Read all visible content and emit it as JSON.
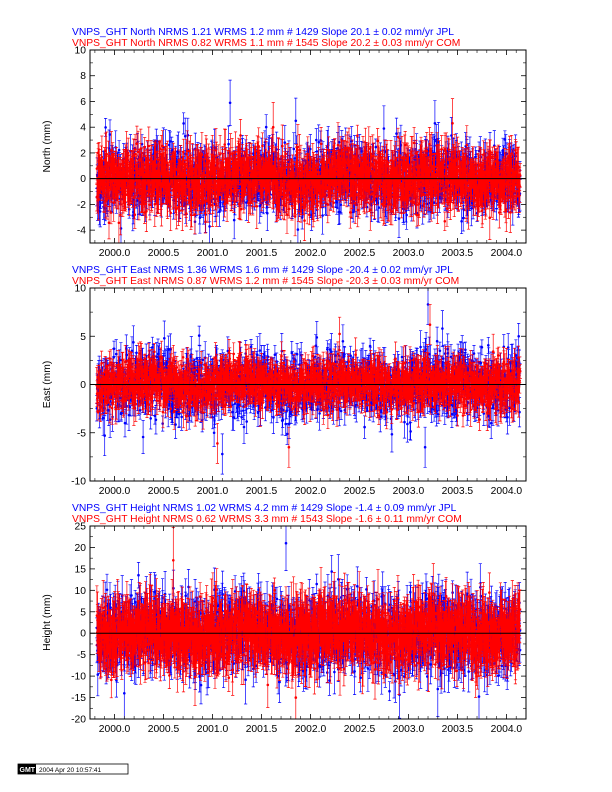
{
  "colors": {
    "jpl": "#0000ff",
    "com": "#ff0000",
    "axis": "#000000"
  },
  "chart_data": [
    {
      "type": "scatter",
      "title_lines": [
        {
          "text": "VNPS_GHT North NRMS 1.21 WRMS  1.2 mm # 1429 Slope   20.1 ±  0.02 mm/yr JPL",
          "color": "#0000ff"
        },
        {
          "text": "VNPS_GHT North NRMS 0.82 WRMS  1.1 mm # 1545 Slope   20.2 ±  0.03 mm/yr COM",
          "color": "#ff0000"
        }
      ],
      "ylabel": "North (mm)",
      "xlim": [
        1999.75,
        2004.2
      ],
      "ylim": [
        -5,
        10
      ],
      "yticks": [
        -4,
        -2,
        0,
        2,
        4,
        6,
        8,
        10
      ],
      "xticks": [
        2000.0,
        2000.5,
        2001.0,
        2001.5,
        2002.0,
        2002.5,
        2003.0,
        2003.5,
        2004.0
      ],
      "series": [
        {
          "name": "JPL",
          "color": "#0000ff",
          "count": 1429,
          "rms": 1.2,
          "err": 1.1,
          "outliers": [
            [
              2001.18,
              5.9
            ],
            [
              2001.85,
              4.5
            ],
            [
              2003.27,
              4.3
            ],
            [
              2002.75,
              3.9
            ]
          ]
        },
        {
          "name": "COM",
          "color": "#ff0000",
          "count": 1545,
          "rms": 1.1,
          "err": 1.2,
          "outliers": [
            [
              2003.45,
              4.3
            ],
            [
              2001.62,
              4.0
            ]
          ]
        }
      ],
      "seed": 11
    },
    {
      "type": "scatter",
      "title_lines": [
        {
          "text": "VNPS_GHT East NRMS 1.36 WRMS  1.6 mm # 1429 Slope  -20.4 ±  0.02 mm/yr JPL",
          "color": "#0000ff"
        },
        {
          "text": "VNPS_GHT East NRMS 0.87 WRMS  1.2 mm # 1545 Slope  -20.3 ±  0.03 mm/yr COM",
          "color": "#ff0000"
        }
      ],
      "ylabel": "East (mm)",
      "xlim": [
        1999.75,
        2004.2
      ],
      "ylim": [
        -10,
        10
      ],
      "yticks": [
        -10,
        -5,
        0,
        5,
        10
      ],
      "xticks": [
        2000.0,
        2000.5,
        2001.0,
        2001.5,
        2002.0,
        2002.5,
        2003.0,
        2003.5,
        2004.0
      ],
      "series": [
        {
          "name": "JPL",
          "color": "#0000ff",
          "count": 1429,
          "rms": 1.6,
          "err": 1.3,
          "outliers": [
            [
              2003.2,
              8.3
            ],
            [
              2001.1,
              -7.2
            ],
            [
              1999.9,
              -5.3
            ],
            [
              2003.17,
              -6.5
            ]
          ]
        },
        {
          "name": "COM",
          "color": "#ff0000",
          "count": 1545,
          "rms": 1.2,
          "err": 1.3,
          "outliers": [
            [
              2001.05,
              -6.1
            ],
            [
              2003.22,
              6.2
            ],
            [
              2001.78,
              -6.5
            ]
          ]
        }
      ],
      "seed": 23
    },
    {
      "type": "scatter",
      "title_lines": [
        {
          "text": "VNPS_GHT Height NRMS 1.02 WRMS  4.2 mm # 1429 Slope   -1.4 ±  0.09 mm/yr JPL",
          "color": "#0000ff"
        },
        {
          "text": "VNPS_GHT Height NRMS 0.62 WRMS  3.3 mm # 1543 Slope   -1.6 ±  0.11 mm/yr COM",
          "color": "#ff0000"
        }
      ],
      "ylabel": "Height (mm)",
      "xlim": [
        1999.75,
        2004.2
      ],
      "ylim": [
        -20,
        25
      ],
      "yticks": [
        -20,
        -15,
        -10,
        -5,
        0,
        5,
        10,
        15,
        20,
        25
      ],
      "xticks": [
        2000.0,
        2000.5,
        2001.0,
        2001.5,
        2002.0,
        2002.5,
        2003.0,
        2003.5,
        2004.0
      ],
      "series": [
        {
          "name": "JPL",
          "color": "#0000ff",
          "count": 1429,
          "rms": 4.2,
          "err": 4.0,
          "outliers": [
            [
              2001.75,
              21.0
            ],
            [
              2000.1,
              -14.0
            ],
            [
              2003.3,
              -13.0
            ]
          ]
        },
        {
          "name": "COM",
          "color": "#ff0000",
          "count": 1543,
          "rms": 3.3,
          "err": 4.8,
          "outliers": [
            [
              2000.6,
              17.0
            ],
            [
              2001.85,
              -15.0
            ]
          ]
        }
      ],
      "seed": 37
    }
  ],
  "footer": {
    "logo": "GMT",
    "timestamp": "2004 Apr 20 10:57:41"
  }
}
